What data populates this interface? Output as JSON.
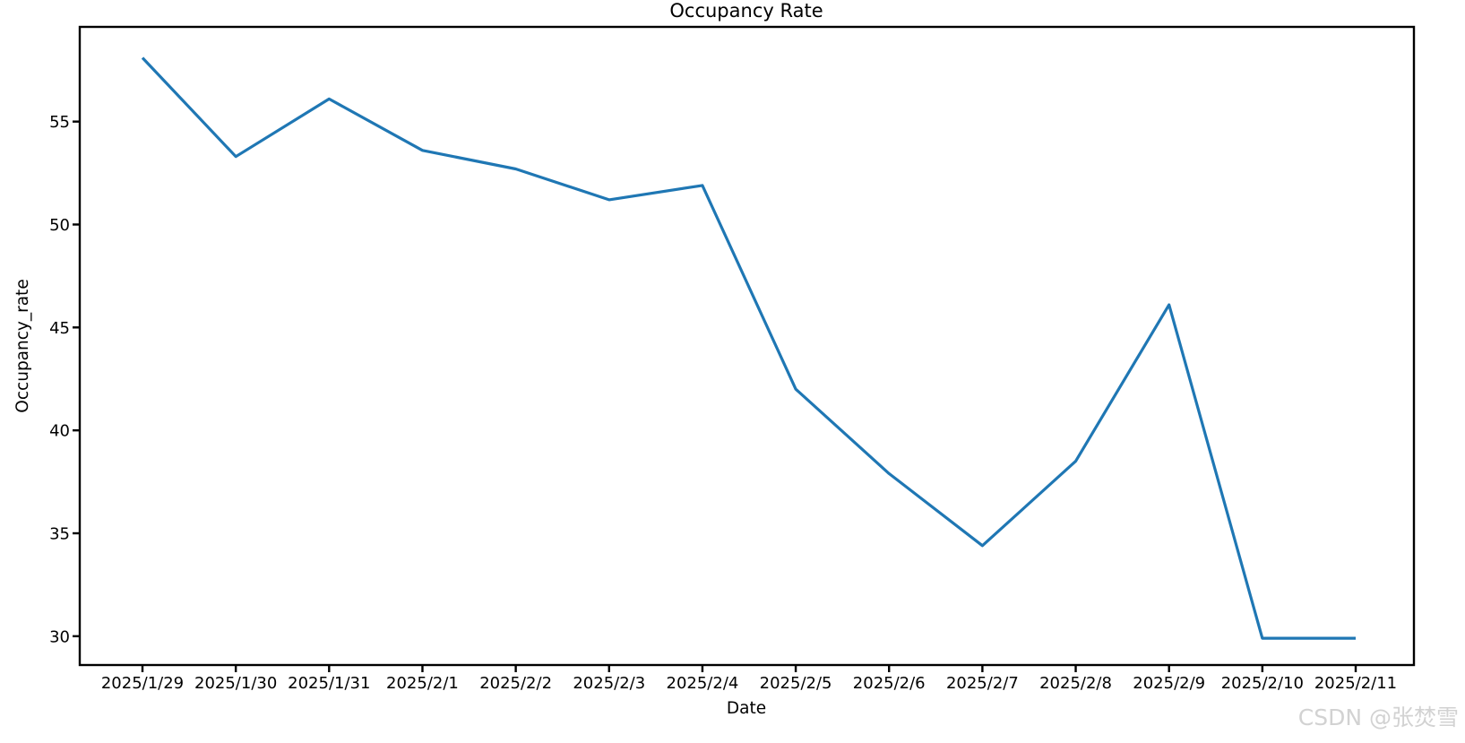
{
  "title": "Occupancy Rate",
  "watermark": "CSDN @张焚雪",
  "colors": {
    "line": "#1f77b4",
    "axis": "#000000",
    "text": "#000000",
    "watermark": "#d2d2d2",
    "background": "#ffffff"
  },
  "chart_data": {
    "type": "line",
    "title": "Occupancy Rate",
    "xlabel": "Date",
    "ylabel": "Occupancy_rate",
    "x": [
      "2025/1/29",
      "2025/1/30",
      "2025/1/31",
      "2025/2/1",
      "2025/2/2",
      "2025/2/3",
      "2025/2/4",
      "2025/2/5",
      "2025/2/6",
      "2025/2/7",
      "2025/2/8",
      "2025/2/9",
      "2025/2/10",
      "2025/2/11"
    ],
    "series": [
      {
        "name": "Occupancy_rate",
        "values": [
          58.1,
          53.3,
          56.1,
          53.6,
          52.7,
          51.2,
          51.9,
          42.0,
          37.9,
          34.4,
          38.5,
          46.1,
          29.9,
          29.9
        ]
      }
    ],
    "yticks": [
      30,
      35,
      40,
      45,
      50,
      55
    ],
    "ylim": [
      28.6,
      59.6
    ],
    "grid": false,
    "legend": "none",
    "line_width": 3.2
  }
}
